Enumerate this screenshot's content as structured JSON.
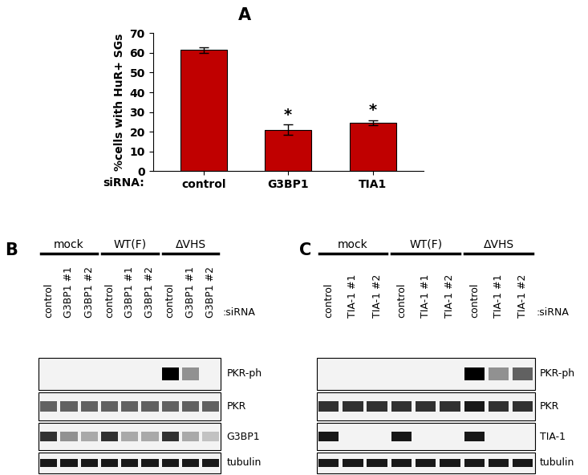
{
  "chart_data": {
    "type": "bar",
    "panel_label": "A",
    "ylabel": "%cells with HuR+ SGs",
    "xlabel": "siRNA:",
    "categories": [
      "control",
      "G3BP1",
      "TIA1"
    ],
    "values": [
      61.5,
      21,
      24.5
    ],
    "errors": [
      1.5,
      2.5,
      1.3
    ],
    "color": "#c00000",
    "ylim": [
      0,
      70
    ],
    "yticks": [
      0,
      10,
      20,
      30,
      40,
      50,
      60,
      70
    ],
    "annotations": [
      {
        "category": "G3BP1",
        "text": "*"
      },
      {
        "category": "TIA1",
        "text": "*"
      }
    ]
  },
  "blots": [
    {
      "panel_label": "B",
      "lane_label": ":siRNA",
      "groups": [
        {
          "name": "mock",
          "lanes": [
            "control",
            "G3BP1 #1",
            "G3BP1 #2"
          ]
        },
        {
          "name": "WT(F)",
          "lanes": [
            "control",
            "G3BP1 #1",
            "G3BP1 #2"
          ]
        },
        {
          "name": "ΔVHS",
          "lanes": [
            "control",
            "G3BP1 #1",
            "G3BP1 #2"
          ]
        }
      ],
      "rows": [
        {
          "name": "PKR-ph",
          "bands": [
            0,
            0,
            0,
            0,
            0,
            0,
            1.0,
            0.4,
            0
          ]
        },
        {
          "name": "PKR",
          "bands": [
            0.6,
            0.6,
            0.6,
            0.6,
            0.6,
            0.6,
            0.6,
            0.6,
            0.6
          ]
        },
        {
          "name": "G3BP1",
          "bands": [
            0.8,
            0.4,
            0.3,
            0.8,
            0.3,
            0.3,
            0.8,
            0.3,
            0.2
          ]
        },
        {
          "name": "tubulin",
          "bands": [
            0.9,
            0.9,
            0.9,
            0.9,
            0.9,
            0.9,
            0.9,
            0.9,
            0.9
          ]
        }
      ]
    },
    {
      "panel_label": "C",
      "lane_label": ":siRNA",
      "groups": [
        {
          "name": "mock",
          "lanes": [
            "control",
            "TIA-1 #1",
            "TIA-1 #2"
          ]
        },
        {
          "name": "WT(F)",
          "lanes": [
            "control",
            "TIA-1 #1",
            "TIA-1 #2"
          ]
        },
        {
          "name": "ΔVHS",
          "lanes": [
            "control",
            "TIA-1 #1",
            "TIA-1 #2"
          ]
        }
      ],
      "rows": [
        {
          "name": "PKR-ph",
          "bands": [
            0,
            0,
            0,
            0,
            0,
            0,
            1.0,
            0.4,
            0.6
          ]
        },
        {
          "name": "PKR",
          "bands": [
            0.8,
            0.8,
            0.8,
            0.8,
            0.8,
            0.8,
            0.9,
            0.8,
            0.8
          ]
        },
        {
          "name": "TIA-1",
          "bands": [
            0.9,
            0,
            0,
            0.9,
            0,
            0,
            0.9,
            0,
            0
          ]
        },
        {
          "name": "tubulin",
          "bands": [
            0.9,
            0.9,
            0.9,
            0.9,
            0.9,
            0.9,
            0.9,
            0.9,
            0.9
          ]
        }
      ]
    }
  ]
}
